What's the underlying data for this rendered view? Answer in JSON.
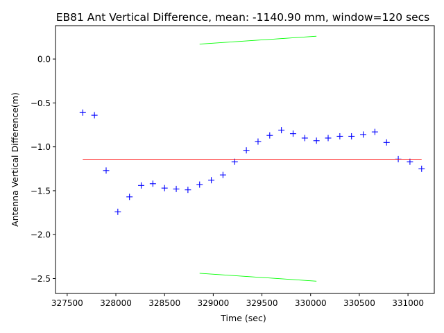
{
  "chart_data": {
    "type": "scatter",
    "title": "EB81 Ant Vertical Difference, mean: -1140.90 mm, window=120 secs",
    "xlabel": "Time (sec)",
    "ylabel": "Antenna Vertical Difference(m)",
    "xlim": [
      327380,
      331270
    ],
    "ylim": [
      -2.67,
      0.38
    ],
    "x_ticks": [
      327500,
      328000,
      328500,
      329000,
      329500,
      330000,
      330500,
      331000
    ],
    "x_tick_labels": [
      "327500",
      "328000",
      "328500",
      "329000",
      "329500",
      "330000",
      "330500",
      "331000"
    ],
    "y_ticks": [
      0.0,
      -0.5,
      -1.0,
      -1.5,
      -2.0,
      -2.5
    ],
    "y_tick_labels": [
      "0.0",
      "−0.5",
      "−1.0",
      "−1.5",
      "−2.0",
      "−2.5"
    ],
    "grid": false,
    "series": [
      {
        "marker": "plus",
        "color": "#0000ff",
        "x": [
          327660,
          327780,
          327900,
          328020,
          328140,
          328260,
          328380,
          328500,
          328620,
          328740,
          328860,
          328980,
          329100,
          329220,
          329340,
          329460,
          329580,
          329700,
          329820,
          329940,
          330060,
          330180,
          330300,
          330420,
          330540,
          330660,
          330780,
          330900,
          331020,
          331140
        ],
        "y": [
          -0.61,
          -0.64,
          -1.27,
          -1.74,
          -1.57,
          -1.44,
          -1.42,
          -1.47,
          -1.48,
          -1.49,
          -1.43,
          -1.38,
          -1.32,
          -1.17,
          -1.04,
          -0.94,
          -0.87,
          -0.81,
          -0.85,
          -0.9,
          -0.93,
          -0.9,
          -0.88,
          -0.88,
          -0.86,
          -0.83,
          -0.95,
          -1.14,
          -1.17,
          -1.25
        ]
      },
      {
        "line": true,
        "color": "#ff0000",
        "x": [
          327660,
          331140
        ],
        "y": [
          -1.1409,
          -1.1409
        ]
      },
      {
        "line": true,
        "color": "#00ff00",
        "x": [
          328860,
          330060
        ],
        "y": [
          0.17,
          0.26
        ]
      },
      {
        "line": true,
        "color": "#00ff00",
        "x": [
          328860,
          330060
        ],
        "y": [
          -2.44,
          -2.53
        ]
      }
    ]
  }
}
